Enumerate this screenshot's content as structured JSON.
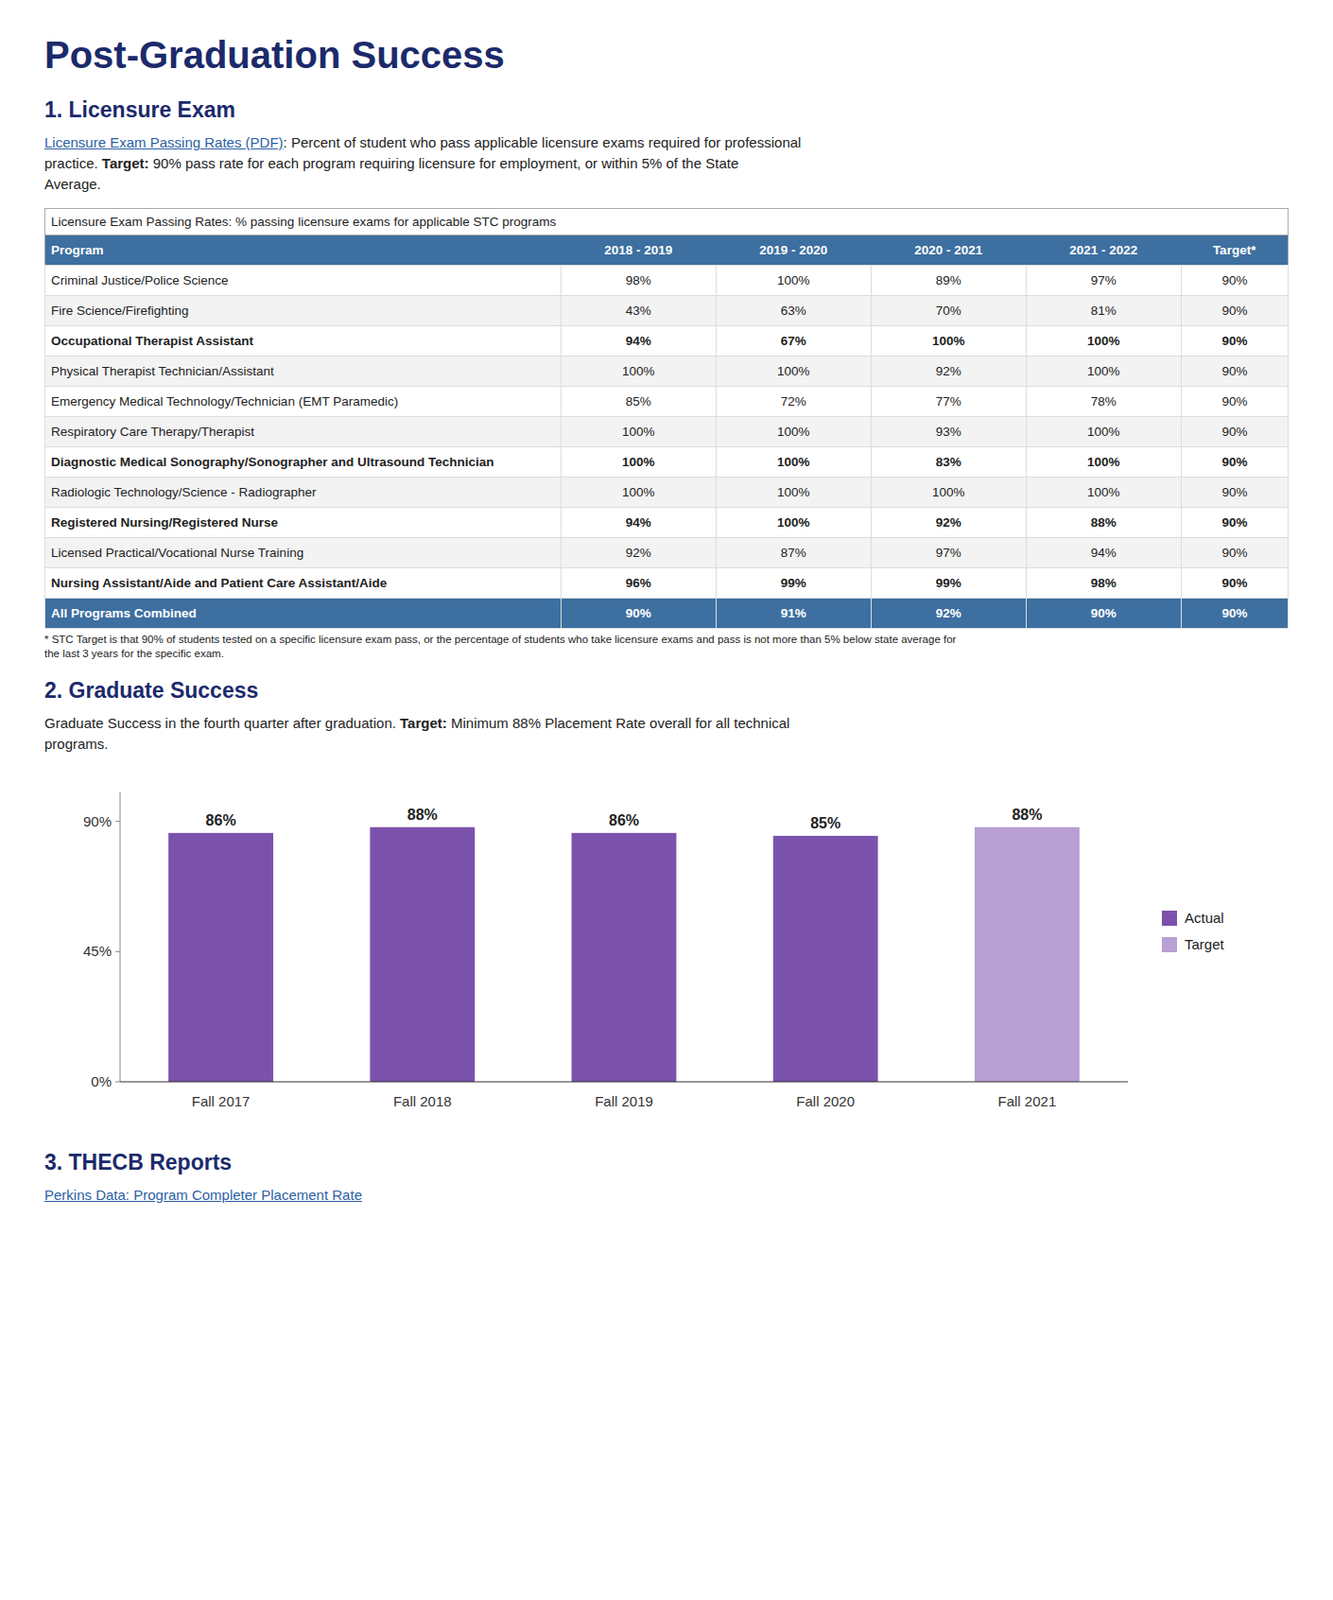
{
  "page": {
    "title": "Post-Graduation Success",
    "sections": [
      {
        "title": "1. Licensure Exam",
        "lines": [
          [
            {
              "text": "Licensure Exam Passing Rates (PDF)",
              "link": true
            },
            {
              "text": ": Percent of student who pass applicable licensure exams required for professional"
            }
          ],
          [
            {
              "text": "practice. "
            },
            {
              "text": "Target:",
              "bold": true
            },
            {
              "text": " 90% pass rate for each program requiring licensure for employment, or within 5% of the State"
            }
          ],
          [
            {
              "text": "Average."
            }
          ]
        ]
      },
      {
        "title": "2. Graduate Success",
        "lines": [
          [
            {
              "text": "Graduate Success in the fourth quarter after graduation. "
            },
            {
              "text": "Target:",
              "bold": true
            },
            {
              "text": " Minimum 88% Placement Rate overall for all technical"
            }
          ],
          [
            {
              "text": "programs."
            }
          ]
        ]
      },
      {
        "title": "3. THECB Reports",
        "lines": [
          [
            {
              "text": "Perkins Data: Program Completer Placement Rate",
              "link": true
            }
          ]
        ]
      }
    ]
  },
  "chart_data": [
    {
      "type": "table",
      "title": "Licensure Exam Passing Rates: % passing licensure exams for applicable STC programs",
      "columns": [
        "Program",
        "2018 - 2019",
        "2019 - 2020",
        "2020 - 2021",
        "2021 - 2022",
        "Target*"
      ],
      "rows": [
        {
          "name": "Criminal Justice/Police Science",
          "bold": false,
          "footer": false,
          "values": [
            98,
            100,
            89,
            97,
            90
          ],
          "value_labels": [
            "98%",
            "100%",
            "89%",
            "97%",
            "90%"
          ]
        },
        {
          "name": "Fire Science/Firefighting",
          "bold": false,
          "footer": false,
          "values": [
            43,
            63,
            70,
            81,
            90
          ],
          "value_labels": [
            "43%",
            "63%",
            "70%",
            "81%",
            "90%"
          ]
        },
        {
          "name": "Occupational Therapist Assistant",
          "bold": true,
          "footer": false,
          "values": [
            94,
            67,
            100,
            100,
            90
          ],
          "value_labels": [
            "94%",
            "67%",
            "100%",
            "100%",
            "90%"
          ]
        },
        {
          "name": "Physical Therapist Technician/Assistant",
          "bold": false,
          "footer": false,
          "values": [
            100,
            100,
            92,
            100,
            90
          ],
          "value_labels": [
            "100%",
            "100%",
            "92%",
            "100%",
            "90%"
          ]
        },
        {
          "name": "Emergency Medical Technology/Technician (EMT Paramedic)",
          "bold": false,
          "footer": false,
          "values": [
            85,
            72,
            77,
            78,
            90
          ],
          "value_labels": [
            "85%",
            "72%",
            "77%",
            "78%",
            "90%"
          ]
        },
        {
          "name": "Respiratory Care Therapy/Therapist",
          "bold": false,
          "footer": false,
          "values": [
            100,
            100,
            93,
            100,
            90
          ],
          "value_labels": [
            "100%",
            "100%",
            "93%",
            "100%",
            "90%"
          ]
        },
        {
          "name": "Diagnostic Medical Sonography/Sonographer and Ultrasound Technician",
          "bold": true,
          "footer": false,
          "values": [
            100,
            100,
            83,
            100,
            90
          ],
          "value_labels": [
            "100%",
            "100%",
            "83%",
            "100%",
            "90%"
          ]
        },
        {
          "name": "Radiologic Technology/Science - Radiographer",
          "bold": false,
          "footer": false,
          "values": [
            100,
            100,
            100,
            100,
            90
          ],
          "value_labels": [
            "100%",
            "100%",
            "100%",
            "100%",
            "90%"
          ]
        },
        {
          "name": "Registered Nursing/Registered Nurse",
          "bold": true,
          "footer": false,
          "values": [
            94,
            100,
            92,
            88,
            90
          ],
          "value_labels": [
            "94%",
            "100%",
            "92%",
            "88%",
            "90%"
          ]
        },
        {
          "name": "Licensed Practical/Vocational Nurse Training",
          "bold": false,
          "footer": false,
          "values": [
            92,
            87,
            97,
            94,
            90
          ],
          "value_labels": [
            "92%",
            "87%",
            "97%",
            "94%",
            "90%"
          ]
        },
        {
          "name": "Nursing Assistant/Aide and Patient Care Assistant/Aide",
          "bold": true,
          "footer": false,
          "values": [
            96,
            99,
            99,
            98,
            90
          ],
          "value_labels": [
            "96%",
            "99%",
            "99%",
            "98%",
            "90%"
          ]
        },
        {
          "name": "All Programs Combined",
          "bold": true,
          "footer": true,
          "values": [
            90,
            91,
            92,
            90,
            90
          ],
          "value_labels": [
            "90%",
            "91%",
            "92%",
            "90%",
            "90%"
          ]
        }
      ],
      "footnote": [
        "* STC Target is that 90% of students tested on a specific licensure exam pass, or the percentage of students who take licensure exams and pass is not more than 5% below state average for",
        "the last 3 years for the specific exam."
      ]
    },
    {
      "type": "bar",
      "categories": [
        "Fall 2017",
        "Fall 2018",
        "Fall 2019",
        "Fall 2020",
        "Fall 2021"
      ],
      "series": [
        {
          "name": "Actual",
          "color": "#7B52AB",
          "values": [
            86,
            88,
            86,
            85,
            null
          ],
          "value_labels": [
            "86%",
            "88%",
            "86%",
            "85%",
            null
          ]
        },
        {
          "name": "Target",
          "color": "#B89FD4",
          "values": [
            null,
            null,
            null,
            null,
            88
          ],
          "value_labels": [
            null,
            null,
            null,
            null,
            "88%"
          ]
        }
      ],
      "stacked": true,
      "ylim": [
        0,
        100
      ],
      "yticks": [
        {
          "value": 0,
          "label": "0%"
        },
        {
          "value": 45,
          "label": "45%"
        },
        {
          "value": 90,
          "label": "90%"
        }
      ],
      "grid": false,
      "legend": "right",
      "data_labels": true
    }
  ]
}
